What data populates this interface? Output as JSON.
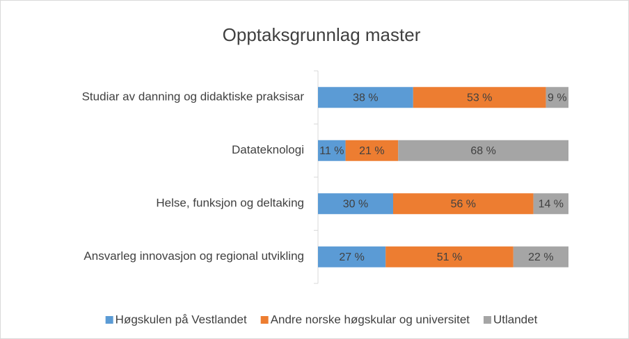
{
  "chart_data": {
    "type": "bar",
    "orientation": "horizontal",
    "stacked": true,
    "title": "Opptaksgrunnlag master",
    "categories": [
      "Studiar av danning og didaktiske praksisar",
      "Datateknologi",
      "Helse, funksjon og deltaking",
      "Ansvarleg innovasjon og regional utvikling"
    ],
    "xlim": [
      0,
      100
    ],
    "series": [
      {
        "name": "Høgskulen på Vestlandet",
        "color": "#5b9bd5",
        "values": [
          38,
          11,
          30,
          27
        ],
        "value_labels": [
          "38 %",
          "11 %",
          "30 %",
          "27 %"
        ]
      },
      {
        "name": "Andre norske høgskular og universitet",
        "color": "#ed7d31",
        "values": [
          53,
          21,
          56,
          51
        ],
        "value_labels": [
          "53 %",
          "21 %",
          "56 %",
          "51 %"
        ]
      },
      {
        "name": "Utlandet",
        "color": "#a5a5a5",
        "values": [
          9,
          68,
          14,
          22
        ],
        "value_labels": [
          "9 %",
          "68 %",
          "14 %",
          "22 %"
        ]
      }
    ],
    "legend": "bottom"
  }
}
